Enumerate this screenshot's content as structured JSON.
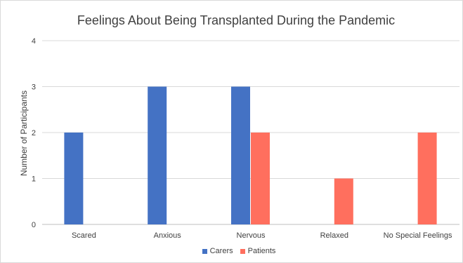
{
  "chart_data": {
    "type": "bar",
    "title": "Feelings About Being Transplanted During the Pandemic",
    "xlabel": "",
    "ylabel": "Number of Participants",
    "ylim": [
      0,
      4
    ],
    "yticks": [
      0,
      1,
      2,
      3,
      4
    ],
    "grid": true,
    "legend_position": "bottom",
    "categories": [
      "Scared",
      "Anxious",
      "Nervous",
      "Relaxed",
      "No Special Feelings"
    ],
    "series": [
      {
        "name": "Carers",
        "color": "#4472c4",
        "values": [
          2,
          3,
          3,
          0,
          0
        ]
      },
      {
        "name": "Patients",
        "color": "#ff6f5e",
        "values": [
          0,
          0,
          2,
          1,
          2
        ]
      }
    ]
  }
}
